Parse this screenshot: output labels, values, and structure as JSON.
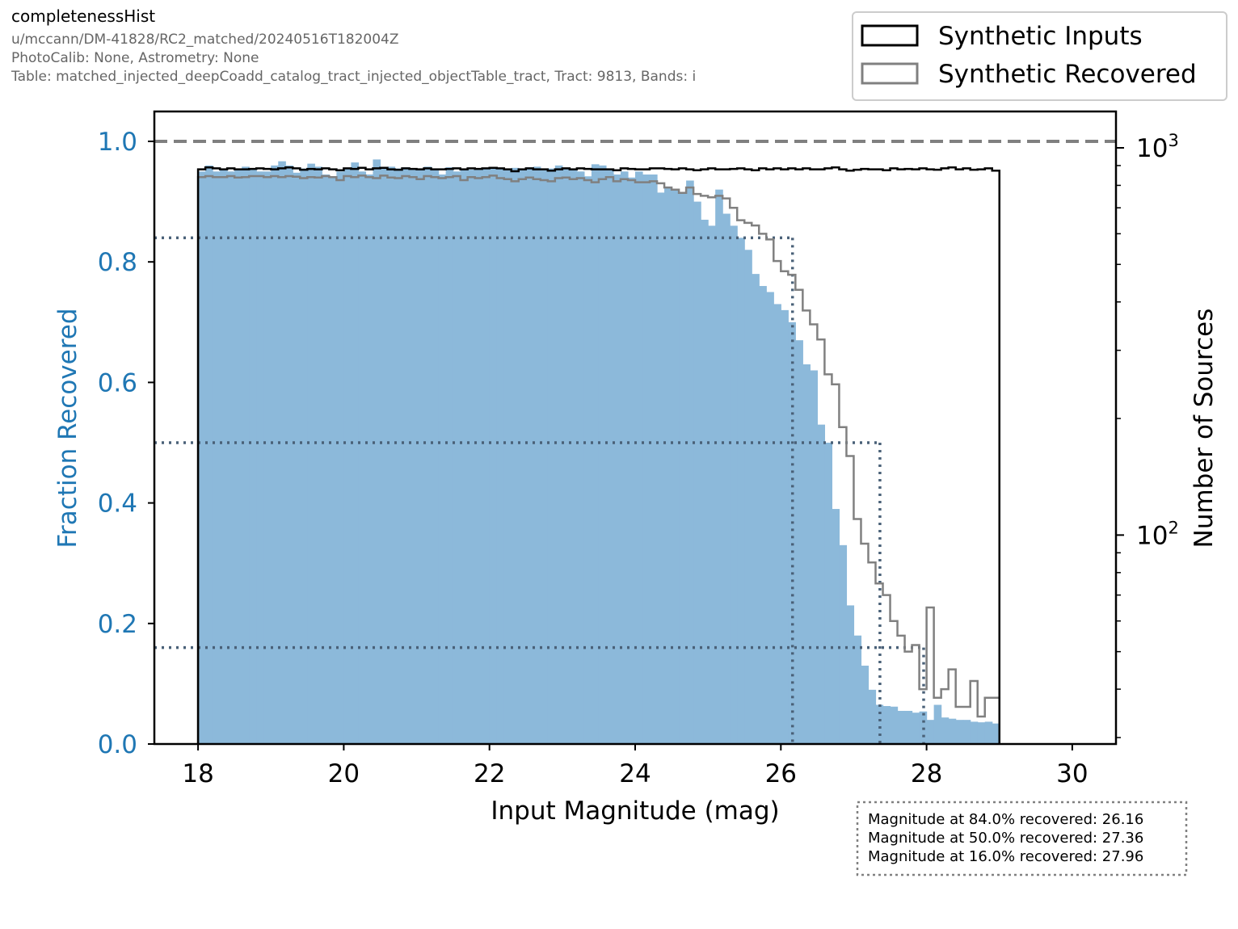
{
  "header": {
    "title": "completenessHist",
    "meta_lines": [
      "u/mccann/DM-41828/RC2_matched/20240516T182004Z",
      "PhotoCalib: None, Astrometry: None",
      "Table: matched_injected_deepCoadd_catalog_tract_injected_objectTable_tract, Tract: 9813, Bands: i"
    ]
  },
  "chart_data": {
    "type": "bar",
    "xlabel": "Input Magnitude (mag)",
    "ylabel_left": "Fraction Recovered",
    "ylabel_right": "Number of Sources",
    "xlim": [
      17.4,
      30.6
    ],
    "ylim_left": [
      0,
      1.0
    ],
    "ylim_right_log": [
      30,
      1000
    ],
    "x_ticks": [
      18,
      20,
      22,
      24,
      26,
      28,
      30
    ],
    "y_ticks_left": [
      0.0,
      0.2,
      0.4,
      0.6,
      0.8,
      1.0
    ],
    "y_ticks_right": [
      {
        "value": 1000,
        "base": "10",
        "exp": "3"
      },
      {
        "value": 100,
        "base": "10",
        "exp": "2"
      }
    ],
    "legend_position": "top-right",
    "legend": [
      {
        "label": "Synthetic Inputs",
        "color": "#000000"
      },
      {
        "label": "Synthetic Recovered",
        "color": "#808080"
      }
    ],
    "bin_range": [
      18,
      30
    ],
    "bin_width": 0.1,
    "fraction_recovered": [
      0.95,
      0.96,
      0.95,
      0.955,
      0.95,
      0.955,
      0.958,
      0.955,
      0.95,
      0.95,
      0.96,
      0.967,
      0.96,
      0.948,
      0.955,
      0.963,
      0.958,
      0.945,
      0.94,
      0.95,
      0.955,
      0.965,
      0.95,
      0.945,
      0.97,
      0.955,
      0.958,
      0.955,
      0.957,
      0.955,
      0.955,
      0.958,
      0.955,
      0.945,
      0.957,
      0.95,
      0.955,
      0.953,
      0.955,
      0.956,
      0.955,
      0.954,
      0.955,
      0.956,
      0.955,
      0.957,
      0.958,
      0.952,
      0.955,
      0.96,
      0.955,
      0.955,
      0.95,
      0.942,
      0.962,
      0.96,
      0.955,
      0.945,
      0.95,
      0.94,
      0.95,
      0.945,
      0.945,
      0.915,
      0.925,
      0.92,
      0.915,
      0.935,
      0.9,
      0.87,
      0.86,
      0.92,
      0.88,
      0.86,
      0.84,
      0.82,
      0.78,
      0.76,
      0.75,
      0.73,
      0.72,
      0.7,
      0.67,
      0.63,
      0.62,
      0.53,
      0.5,
      0.39,
      0.33,
      0.23,
      0.18,
      0.13,
      0.09,
      0.065,
      0.063,
      0.062,
      0.055,
      0.055,
      0.052,
      0.054,
      0.04,
      0.065,
      0.044,
      0.042,
      0.04,
      0.04,
      0.037,
      0.036,
      0.037,
      0.034
    ],
    "synthetic_inputs": [
      880,
      890,
      885,
      880,
      885,
      880,
      880,
      882,
      885,
      882,
      880,
      885,
      890,
      885,
      878,
      882,
      880,
      885,
      880,
      875,
      885,
      882,
      888,
      880,
      885,
      888,
      880,
      878,
      885,
      882,
      880,
      885,
      880,
      880,
      882,
      885,
      880,
      885,
      882,
      885,
      888,
      885,
      880,
      870,
      880,
      885,
      880,
      880,
      873,
      880,
      885,
      880,
      885,
      882,
      880,
      880,
      880,
      875,
      885,
      882,
      880,
      880,
      885,
      885,
      882,
      880,
      885,
      880,
      875,
      880,
      885,
      880,
      880,
      882,
      885,
      880,
      875,
      885,
      880,
      885,
      880,
      885,
      880,
      885,
      880,
      880,
      885,
      890,
      880,
      873,
      878,
      882,
      880,
      880,
      875,
      885,
      880,
      882,
      880,
      885,
      880,
      878,
      885,
      890,
      880,
      885,
      878,
      880,
      885,
      873
    ],
    "synthetic_recovered": [
      840,
      845,
      840,
      840,
      845,
      838,
      840,
      845,
      845,
      840,
      845,
      840,
      845,
      842,
      835,
      840,
      838,
      845,
      840,
      825,
      845,
      840,
      848,
      840,
      835,
      848,
      838,
      835,
      845,
      840,
      830,
      845,
      840,
      835,
      840,
      845,
      825,
      840,
      835,
      840,
      848,
      835,
      830,
      820,
      830,
      838,
      830,
      825,
      820,
      835,
      838,
      830,
      835,
      825,
      815,
      830,
      840,
      820,
      830,
      825,
      815,
      815,
      820,
      810,
      790,
      780,
      765,
      790,
      760,
      752,
      745,
      752,
      740,
      700,
      650,
      640,
      630,
      600,
      580,
      510,
      480,
      470,
      430,
      380,
      350,
      320,
      260,
      245,
      190,
      160,
      110,
      95,
      85,
      75,
      70,
      60,
      55,
      50,
      52,
      40,
      65,
      38,
      40,
      45,
      36,
      36,
      42,
      34,
      38,
      38
    ]
  },
  "thresholds": [
    {
      "fraction": 0.84,
      "magnitude": 26.16
    },
    {
      "fraction": 0.5,
      "magnitude": 27.36
    },
    {
      "fraction": 0.16,
      "magnitude": 27.96
    }
  ],
  "annotation_lines": [
    "Magnitude at 84.0% recovered: 26.16",
    "Magnitude at 50.0% recovered: 27.36",
    "Magnitude at 16.0% recovered: 27.96"
  ],
  "colors": {
    "fraction": "#8cb9da",
    "axis_label_left": "#1f77b4",
    "inputs": "#000000",
    "recovered": "#808080",
    "threshold_line": "#4a6178"
  }
}
